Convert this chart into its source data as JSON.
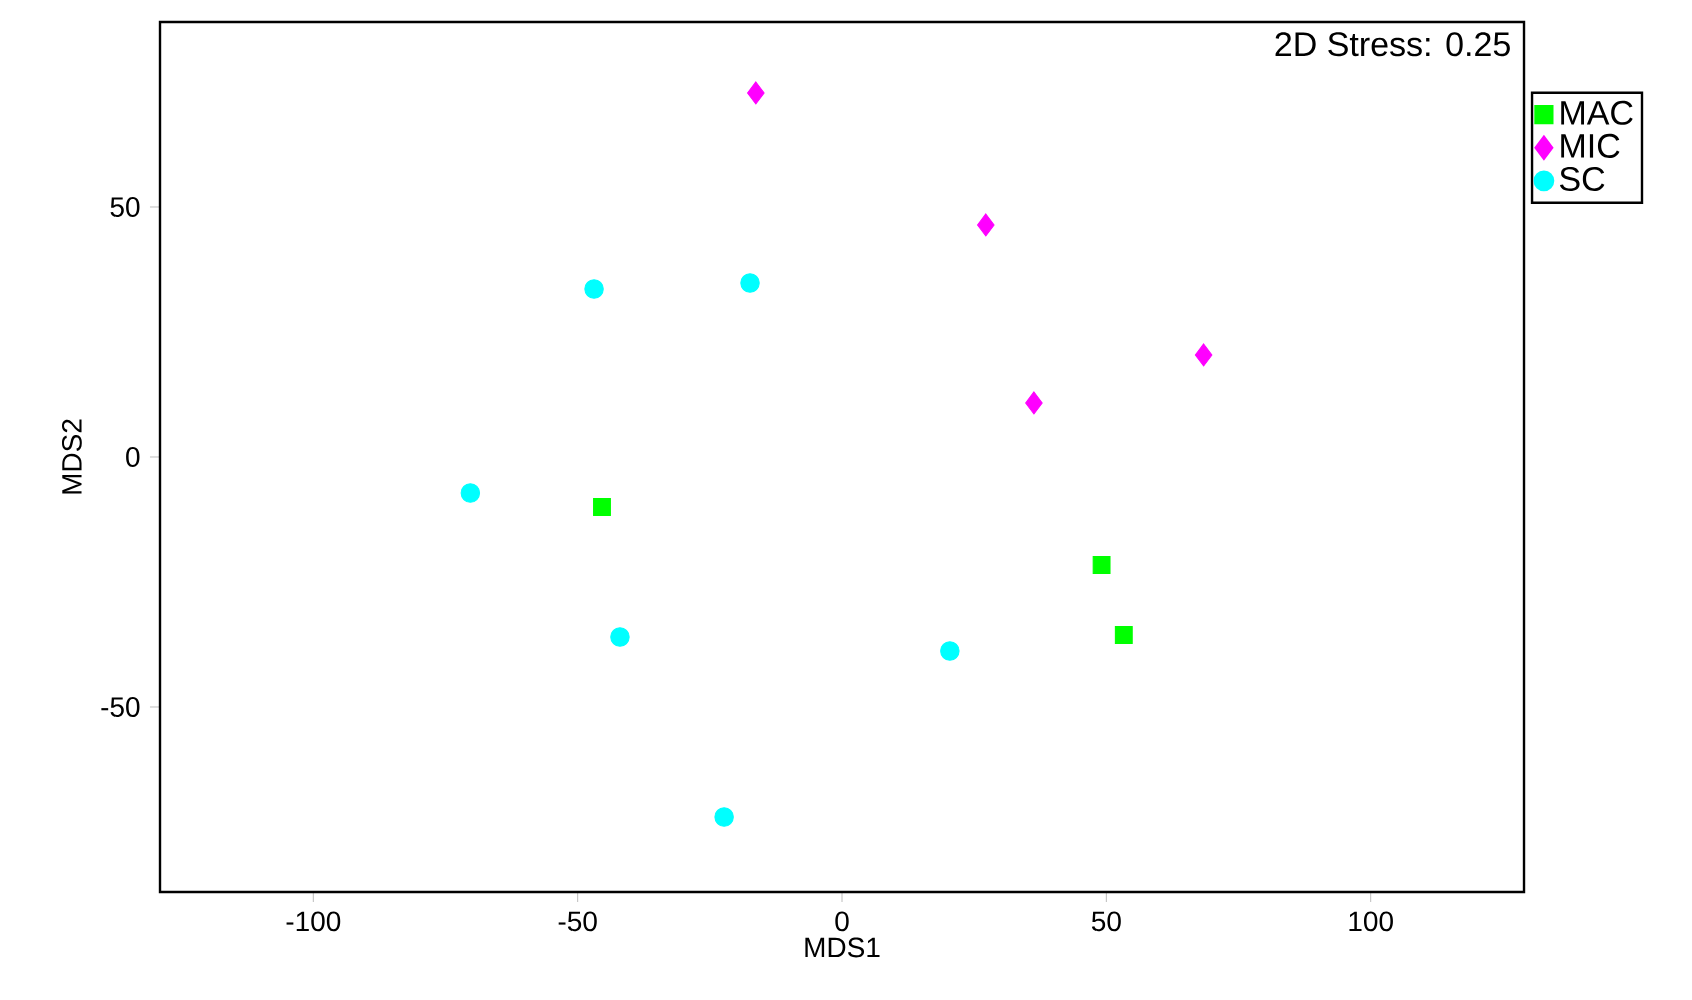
{
  "chart_data": {
    "type": "scatter",
    "xlabel": "MDS1",
    "ylabel": "MDS2",
    "annotations": [
      "2D Stress: 0.25"
    ],
    "xlim": [
      -129,
      129
    ],
    "ylim": [
      -87,
      87
    ],
    "xticks": [
      -100,
      -50,
      0,
      50,
      100
    ],
    "yticks": [
      -50,
      0,
      50
    ],
    "grid": false,
    "legend": "top right",
    "tick_labels": "xy",
    "series": [
      {
        "name": "MAC",
        "color": "#00ff00",
        "marker": "square",
        "x": [
          -45.4,
          49.1,
          53.3
        ],
        "values": [
          -10,
          -21.6,
          -35.6
        ]
      },
      {
        "name": "MIC",
        "color": "#ff00ff",
        "marker": "diamond",
        "x": [
          -16.3,
          27.2,
          36.3,
          68.4
        ],
        "values": [
          72.8,
          46.4,
          10.8,
          20.4
        ]
      },
      {
        "name": "SC",
        "color": "#00ffff",
        "marker": "circle",
        "x": [
          -46.9,
          -17.4,
          -70.3,
          -42,
          20.4,
          -22.3
        ],
        "values": [
          33.6,
          34.8,
          -7.2,
          -36,
          -38.8,
          -72
        ]
      }
    ]
  }
}
